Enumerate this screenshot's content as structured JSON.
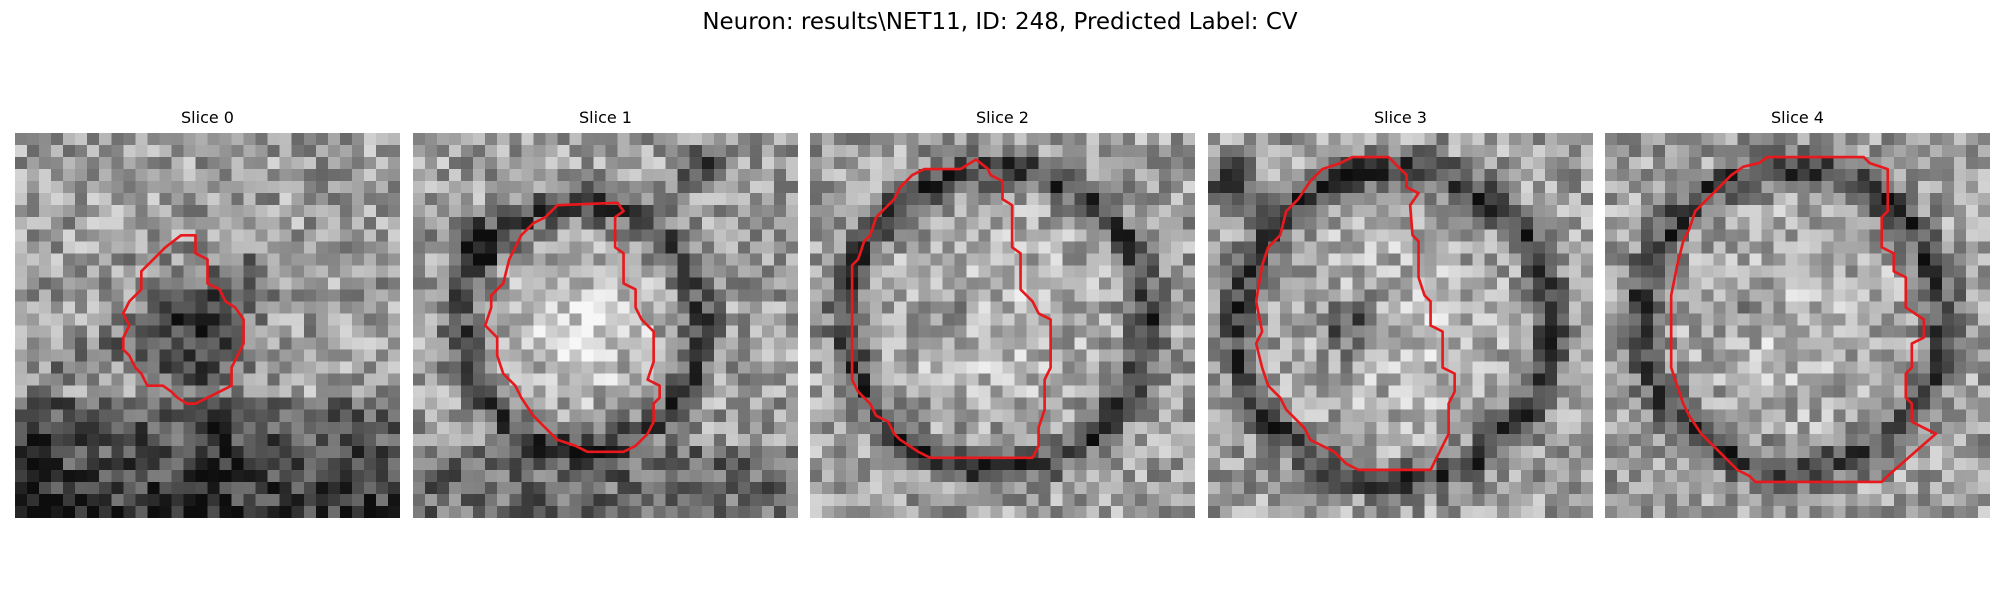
{
  "figure": {
    "title": "Neuron: results\\NET11, ID: 248, Predicted Label: CV"
  },
  "panels": [
    {
      "title": "Slice 0",
      "seed": 11,
      "feature": "dark-blob"
    },
    {
      "title": "Slice 1",
      "seed": 23,
      "feature": "bright-cell"
    },
    {
      "title": "Slice 2",
      "seed": 37,
      "feature": "ring-cell"
    },
    {
      "title": "Slice 3",
      "seed": 41,
      "feature": "ring-dark-center"
    },
    {
      "title": "Slice 4",
      "seed": 53,
      "feature": "ring-cell"
    }
  ],
  "colors": {
    "contour": "#e8191c",
    "background": "#ffffff"
  },
  "image_grid_size": 32
}
